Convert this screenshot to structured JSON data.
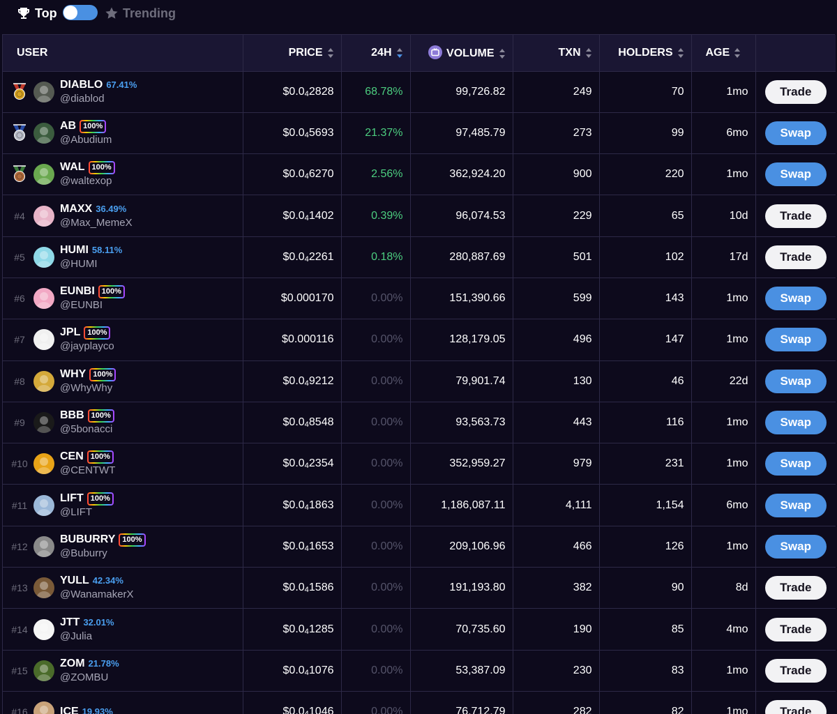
{
  "tabs": {
    "top_label": "Top",
    "trending_label": "Trending"
  },
  "columns": {
    "user": "USER",
    "price": "PRICE",
    "h24": "24H",
    "volume": "VOLUME",
    "txn": "TXN",
    "holders": "HOLDERS",
    "age": "AGE"
  },
  "rows": [
    {
      "rank": "",
      "medal": "gold",
      "name": "DIABLO",
      "pct": "67.41%",
      "badge": false,
      "handle": "@diablod",
      "price_prefix": "$0.0",
      "price_sub": "4",
      "price_digits": "2828",
      "change": "68.78%",
      "change_type": "pos",
      "volume": "99,726.82",
      "txn": "249",
      "holders": "70",
      "age": "1mo",
      "action": "Trade",
      "action_type": "trade",
      "avatar_color": "#555a52"
    },
    {
      "rank": "",
      "medal": "silver",
      "name": "AB",
      "pct": "100%",
      "badge": true,
      "handle": "@Abudium",
      "price_prefix": "$0.0",
      "price_sub": "4",
      "price_digits": "5693",
      "change": "21.37%",
      "change_type": "pos",
      "volume": "97,485.79",
      "txn": "273",
      "holders": "99",
      "age": "6mo",
      "action": "Swap",
      "action_type": "swap",
      "avatar_color": "#3b5c3e"
    },
    {
      "rank": "",
      "medal": "bronze",
      "name": "WAL",
      "pct": "100%",
      "badge": true,
      "handle": "@waltexop",
      "price_prefix": "$0.0",
      "price_sub": "4",
      "price_digits": "6270",
      "change": "2.56%",
      "change_type": "pos",
      "volume": "362,924.20",
      "txn": "900",
      "holders": "220",
      "age": "1mo",
      "action": "Swap",
      "action_type": "swap",
      "avatar_color": "#6aa84f"
    },
    {
      "rank": "#4",
      "medal": "",
      "name": "MAXX",
      "pct": "36.49%",
      "badge": false,
      "handle": "@Max_MemeX",
      "price_prefix": "$0.0",
      "price_sub": "4",
      "price_digits": "1402",
      "change": "0.39%",
      "change_type": "pos",
      "volume": "96,074.53",
      "txn": "229",
      "holders": "65",
      "age": "10d",
      "action": "Trade",
      "action_type": "trade",
      "avatar_color": "#e8b4c8"
    },
    {
      "rank": "#5",
      "medal": "",
      "name": "HUMI",
      "pct": "58.11%",
      "badge": false,
      "handle": "@HUMI",
      "price_prefix": "$0.0",
      "price_sub": "4",
      "price_digits": "2261",
      "change": "0.18%",
      "change_type": "pos",
      "volume": "280,887.69",
      "txn": "501",
      "holders": "102",
      "age": "17d",
      "action": "Trade",
      "action_type": "trade",
      "avatar_color": "#8fd9e8"
    },
    {
      "rank": "#6",
      "medal": "",
      "name": "EUNBI",
      "pct": "100%",
      "badge": true,
      "handle": "@EUNBI",
      "price_prefix": "$0.000170",
      "price_sub": "",
      "price_digits": "",
      "change": "0.00%",
      "change_type": "zero",
      "volume": "151,390.66",
      "txn": "599",
      "holders": "143",
      "age": "1mo",
      "action": "Swap",
      "action_type": "swap",
      "avatar_color": "#f2a8c4"
    },
    {
      "rank": "#7",
      "medal": "",
      "name": "JPL",
      "pct": "100%",
      "badge": true,
      "handle": "@jayplayco",
      "price_prefix": "$0.000116",
      "price_sub": "",
      "price_digits": "",
      "change": "0.00%",
      "change_type": "zero",
      "volume": "128,179.05",
      "txn": "496",
      "holders": "147",
      "age": "1mo",
      "action": "Swap",
      "action_type": "swap",
      "avatar_color": "#f0f0f0"
    },
    {
      "rank": "#8",
      "medal": "",
      "name": "WHY",
      "pct": "100%",
      "badge": true,
      "handle": "@WhyWhy",
      "price_prefix": "$0.0",
      "price_sub": "4",
      "price_digits": "9212",
      "change": "0.00%",
      "change_type": "zero",
      "volume": "79,901.74",
      "txn": "130",
      "holders": "46",
      "age": "22d",
      "action": "Swap",
      "action_type": "swap",
      "avatar_color": "#d4a93a"
    },
    {
      "rank": "#9",
      "medal": "",
      "name": "BBB",
      "pct": "100%",
      "badge": true,
      "handle": "@5bonacci",
      "price_prefix": "$0.0",
      "price_sub": "4",
      "price_digits": "8548",
      "change": "0.00%",
      "change_type": "zero",
      "volume": "93,563.73",
      "txn": "443",
      "holders": "116",
      "age": "1mo",
      "action": "Swap",
      "action_type": "swap",
      "avatar_color": "#1a1a1a"
    },
    {
      "rank": "#10",
      "medal": "",
      "name": "CEN",
      "pct": "100%",
      "badge": true,
      "handle": "@CENTWT",
      "price_prefix": "$0.0",
      "price_sub": "4",
      "price_digits": "2354",
      "change": "0.00%",
      "change_type": "zero",
      "volume": "352,959.27",
      "txn": "979",
      "holders": "231",
      "age": "1mo",
      "action": "Swap",
      "action_type": "swap",
      "avatar_color": "#e8a317"
    },
    {
      "rank": "#11",
      "medal": "",
      "name": "LIFT",
      "pct": "100%",
      "badge": true,
      "handle": "@LIFT",
      "price_prefix": "$0.0",
      "price_sub": "4",
      "price_digits": "1863",
      "change": "0.00%",
      "change_type": "zero",
      "volume": "1,186,087.11",
      "txn": "4,111",
      "holders": "1,154",
      "age": "6mo",
      "action": "Swap",
      "action_type": "swap",
      "avatar_color": "#9bb8d8"
    },
    {
      "rank": "#12",
      "medal": "",
      "name": "BUBURRY",
      "pct": "100%",
      "badge": true,
      "handle": "@Buburry",
      "price_prefix": "$0.0",
      "price_sub": "4",
      "price_digits": "1653",
      "change": "0.00%",
      "change_type": "zero",
      "volume": "209,106.96",
      "txn": "466",
      "holders": "126",
      "age": "1mo",
      "action": "Swap",
      "action_type": "swap",
      "avatar_color": "#8a8a8a"
    },
    {
      "rank": "#13",
      "medal": "",
      "name": "YULL",
      "pct": "42.34%",
      "badge": false,
      "handle": "@WanamakerX",
      "price_prefix": "$0.0",
      "price_sub": "4",
      "price_digits": "1586",
      "change": "0.00%",
      "change_type": "zero",
      "volume": "191,193.80",
      "txn": "382",
      "holders": "90",
      "age": "8d",
      "action": "Trade",
      "action_type": "trade",
      "avatar_color": "#7a5a38"
    },
    {
      "rank": "#14",
      "medal": "",
      "name": "JTT",
      "pct": "32.01%",
      "badge": false,
      "handle": "@Julia",
      "price_prefix": "$0.0",
      "price_sub": "4",
      "price_digits": "1285",
      "change": "0.00%",
      "change_type": "zero",
      "volume": "70,735.60",
      "txn": "190",
      "holders": "85",
      "age": "4mo",
      "action": "Trade",
      "action_type": "trade",
      "avatar_color": "#f5f5f5"
    },
    {
      "rank": "#15",
      "medal": "",
      "name": "ZOM",
      "pct": "21.78%",
      "badge": false,
      "handle": "@ZOMBU",
      "price_prefix": "$0.0",
      "price_sub": "4",
      "price_digits": "1076",
      "change": "0.00%",
      "change_type": "zero",
      "volume": "53,387.09",
      "txn": "230",
      "holders": "83",
      "age": "1mo",
      "action": "Trade",
      "action_type": "trade",
      "avatar_color": "#4a6b2a"
    },
    {
      "rank": "#16",
      "medal": "",
      "name": "ICE",
      "pct": "19.93%",
      "badge": false,
      "handle": "",
      "price_prefix": "$0.0",
      "price_sub": "4",
      "price_digits": "1046",
      "change": "0.00%",
      "change_type": "zero",
      "volume": "76,712.79",
      "txn": "282",
      "holders": "82",
      "age": "1mo",
      "action": "Trade",
      "action_type": "trade",
      "avatar_color": "#c9a37a"
    }
  ],
  "colors": {
    "background": "#0d0a1c",
    "header_bg": "#1a1633",
    "border": "#2d2947",
    "accent_blue": "#4a90e2",
    "positive": "#4ccd7f",
    "zero": "#55546a",
    "pct_blue": "#4a9ff0"
  }
}
